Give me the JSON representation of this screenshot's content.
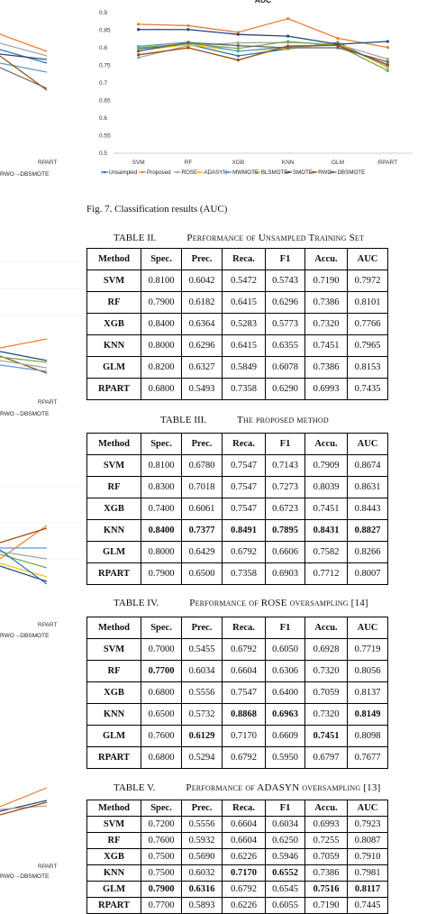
{
  "auc_chart": {
    "title": "AUC",
    "figure_caption": "Fig. 7.   Classification results (AUC)",
    "chart_data": {
      "type": "line",
      "title": "AUC",
      "categories": [
        "SVM",
        "RF",
        "XGB",
        "KNN",
        "GLM",
        "RPART"
      ],
      "ylim": [
        0.5,
        0.9
      ],
      "yticks": [
        "0.5",
        "0.55",
        "0.6",
        "0.65",
        "0.7",
        "0.75",
        "0.8",
        "0.85",
        "0.9"
      ],
      "grid": false,
      "legend": "bottom",
      "series": [
        {
          "name": "Unsampled",
          "color": "#2e75b6",
          "values": [
            0.797,
            0.81,
            0.777,
            0.797,
            0.815,
            0.744
          ]
        },
        {
          "name": "Proposed",
          "color": "#ed7d31",
          "values": [
            0.867,
            0.863,
            0.844,
            0.883,
            0.827,
            0.801
          ]
        },
        {
          "name": "ROSE",
          "color": "#a5a5a5",
          "values": [
            0.772,
            0.806,
            0.814,
            0.815,
            0.81,
            0.768
          ]
        },
        {
          "name": "ADASYN",
          "color": "#ffc000",
          "values": [
            0.792,
            0.809,
            0.791,
            0.798,
            0.812,
            0.745
          ]
        },
        {
          "name": "MWMOTE",
          "color": "#5b9bd5",
          "values": [
            0.804,
            0.816,
            0.79,
            0.803,
            0.808,
            0.75
          ]
        },
        {
          "name": "BLSMOTE",
          "color": "#70ad47",
          "values": [
            0.8,
            0.812,
            0.798,
            0.818,
            0.806,
            0.735
          ]
        },
        {
          "name": "SMOTE",
          "color": "#264478",
          "values": [
            0.852,
            0.852,
            0.838,
            0.833,
            0.81,
            0.818
          ]
        },
        {
          "name": "RWO",
          "color": "#9e480e",
          "values": [
            0.78,
            0.8,
            0.765,
            0.805,
            0.807,
            0.752
          ]
        },
        {
          "name": "DBSMOTE",
          "color": "#636363",
          "values": [
            0.79,
            0.815,
            0.806,
            0.8,
            0.8,
            0.76
          ]
        }
      ]
    }
  },
  "left_fragments": {
    "tick_label": "RPART",
    "legend_text": "RWO→DBSMOTE"
  },
  "tables": [
    {
      "number": "TABLE II.",
      "title": "Performance of Unsampled Training Set",
      "columns": [
        "Method",
        "Spec.",
        "Prec.",
        "Reca.",
        "F1",
        "Accu.",
        "AUC"
      ],
      "rows": [
        [
          "SVM",
          "0.8100",
          "0.6042",
          "0.5472",
          "0.5743",
          "0.7190",
          "0.7972"
        ],
        [
          "RF",
          "0.7900",
          "0.6182",
          "0.6415",
          "0.6296",
          "0.7386",
          "0.8101"
        ],
        [
          "XGB",
          "0.8400",
          "0.6364",
          "0.5283",
          "0.5773",
          "0.7320",
          "0.7766"
        ],
        [
          "KNN",
          "0.8000",
          "0.6296",
          "0.6415",
          "0.6355",
          "0.7451",
          "0.7965"
        ],
        [
          "GLM",
          "0.8200",
          "0.6327",
          "0.5849",
          "0.6078",
          "0.7386",
          "0.8153"
        ],
        [
          "RPART",
          "0.6800",
          "0.5493",
          "0.7358",
          "0.6290",
          "0.6993",
          "0.7435"
        ]
      ],
      "bold": []
    },
    {
      "number": "TABLE III.",
      "title": "The proposed method",
      "columns": [
        "Method",
        "Spec.",
        "Prec.",
        "Reca.",
        "F1",
        "Accu.",
        "AUC"
      ],
      "rows": [
        [
          "SVM",
          "0.8100",
          "0.6780",
          "0.7547",
          "0.7143",
          "0.7909",
          "0.8674"
        ],
        [
          "RF",
          "0.8300",
          "0.7018",
          "0.7547",
          "0.7273",
          "0.8039",
          "0.8631"
        ],
        [
          "XGB",
          "0.7400",
          "0.6061",
          "0.7547",
          "0.6723",
          "0.7451",
          "0.8443"
        ],
        [
          "KNN",
          "0.8400",
          "0.7377",
          "0.8491",
          "0.7895",
          "0.8431",
          "0.8827"
        ],
        [
          "GLM",
          "0.8000",
          "0.6429",
          "0.6792",
          "0.6606",
          "0.7582",
          "0.8266"
        ],
        [
          "RPART",
          "0.7900",
          "0.6500",
          "0.7358",
          "0.6903",
          "0.7712",
          "0.8007"
        ]
      ],
      "bold": [
        [
          3,
          1
        ],
        [
          3,
          2
        ],
        [
          3,
          3
        ],
        [
          3,
          4
        ],
        [
          3,
          5
        ],
        [
          3,
          6
        ]
      ]
    },
    {
      "number": "TABLE IV.",
      "title": "Performance of ROSE oversampling [14]",
      "columns": [
        "Method",
        "Spec.",
        "Prec.",
        "Reca.",
        "F1",
        "Accu.",
        "AUC"
      ],
      "rows": [
        [
          "SVM",
          "0.7000",
          "0.5455",
          "0.6792",
          "0.6050",
          "0.6928",
          "0.7719"
        ],
        [
          "RF",
          "0.7700",
          "0.6034",
          "0.6604",
          "0.6306",
          "0.7320",
          "0.8056"
        ],
        [
          "XGB",
          "0.6800",
          "0.5556",
          "0.7547",
          "0.6400",
          "0.7059",
          "0.8137"
        ],
        [
          "KNN",
          "0.6500",
          "0.5732",
          "0.8868",
          "0.6963",
          "0.7320",
          "0.8149"
        ],
        [
          "GLM",
          "0.7600",
          "0.6129",
          "0.7170",
          "0.6609",
          "0.7451",
          "0.8098"
        ],
        [
          "RPART",
          "0.6800",
          "0.5294",
          "0.6792",
          "0.5950",
          "0.6797",
          "0.7677"
        ]
      ],
      "bold": [
        [
          1,
          1
        ],
        [
          3,
          3
        ],
        [
          3,
          4
        ],
        [
          3,
          6
        ],
        [
          4,
          2
        ],
        [
          4,
          5
        ]
      ]
    },
    {
      "number": "TABLE V.",
      "title": "Performance of ADASYN oversampling [13]",
      "columns": [
        "Method",
        "Spec.",
        "Prec.",
        "Reca.",
        "F1",
        "Accu.",
        "AUC"
      ],
      "rows": [
        [
          "SVM",
          "0.7200",
          "0.5556",
          "0.6604",
          "0.6034",
          "0.6993",
          "0.7923"
        ],
        [
          "RF",
          "0.7600",
          "0.5932",
          "0.6604",
          "0.6250",
          "0.7255",
          "0.8087"
        ],
        [
          "XGB",
          "0.7500",
          "0.5690",
          "0.6226",
          "0.5946",
          "0.7059",
          "0.7910"
        ],
        [
          "KNN",
          "0.7500",
          "0.6032",
          "0.7170",
          "0.6552",
          "0.7386",
          "0.7981"
        ],
        [
          "GLM",
          "0.7900",
          "0.6316",
          "0.6792",
          "0.6545",
          "0.7516",
          "0.8117"
        ],
        [
          "RPART",
          "0.7700",
          "0.5893",
          "0.6226",
          "0.6055",
          "0.7190",
          "0.7445"
        ]
      ],
      "bold": [
        [
          3,
          3
        ],
        [
          3,
          4
        ],
        [
          4,
          1
        ],
        [
          4,
          2
        ],
        [
          4,
          5
        ],
        [
          4,
          6
        ]
      ]
    }
  ]
}
